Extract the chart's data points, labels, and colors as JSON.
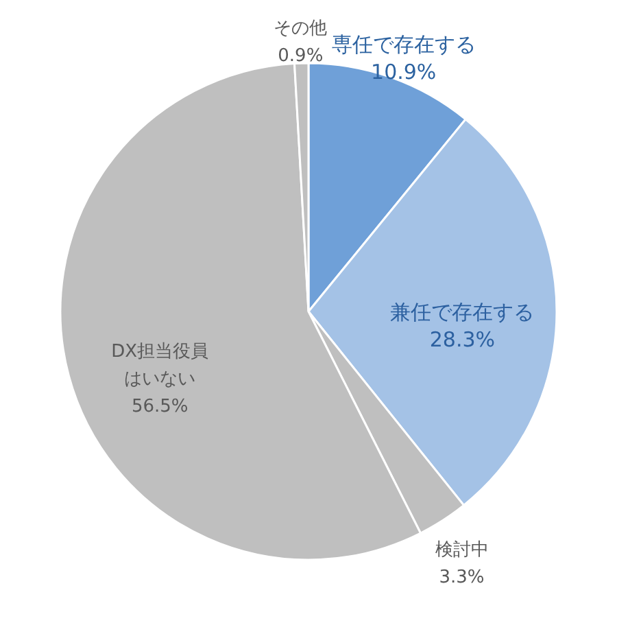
{
  "chart_data": {
    "type": "pie",
    "categories": [
      "専任で存在する",
      "兼任で存在する",
      "検討中",
      "DX担当役員はいない",
      "その他"
    ],
    "values": [
      10.9,
      28.3,
      3.3,
      56.5,
      0.9
    ],
    "value_labels": [
      "10.9%",
      "28.3%",
      "3.3%",
      "56.5%",
      "0.9%"
    ],
    "colors": [
      "#6fa0d8",
      "#a4c2e6",
      "#bfbfbf",
      "#bfbfbf",
      "#bfbfbf"
    ]
  }
}
